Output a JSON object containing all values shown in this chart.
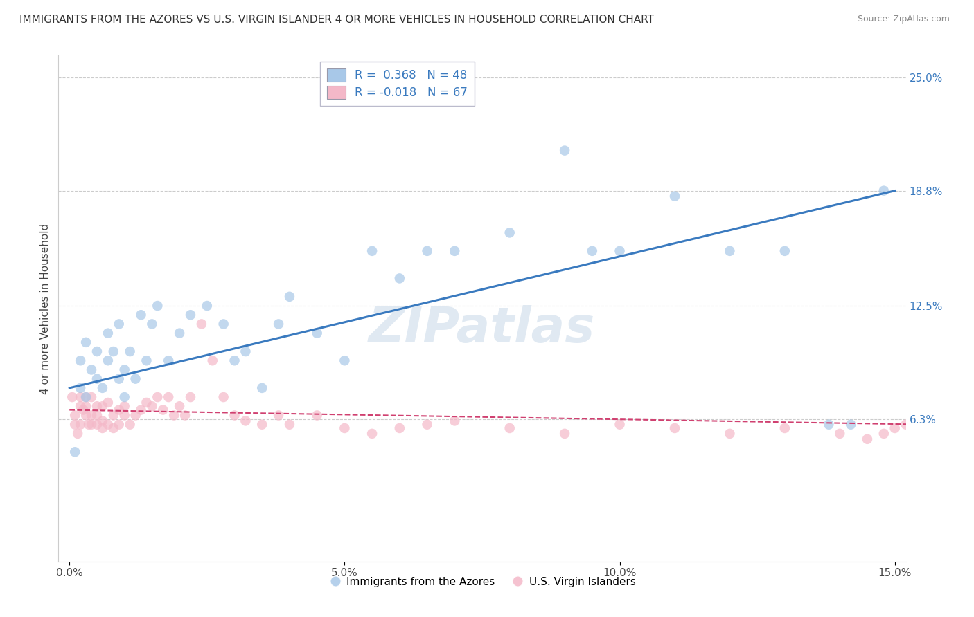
{
  "title": "IMMIGRANTS FROM THE AZORES VS U.S. VIRGIN ISLANDER 4 OR MORE VEHICLES IN HOUSEHOLD CORRELATION CHART",
  "source": "Source: ZipAtlas.com",
  "ylabel": "4 or more Vehicles in Household",
  "legend_label_blue": "Immigrants from the Azores",
  "legend_label_pink": "U.S. Virgin Islanders",
  "R_blue": 0.368,
  "N_blue": 48,
  "R_pink": -0.018,
  "N_pink": 67,
  "xlim": [
    -0.002,
    0.152
  ],
  "ylim": [
    -0.015,
    0.262
  ],
  "x_ticks": [
    0.0,
    0.05,
    0.1,
    0.15
  ],
  "x_tick_labels": [
    "0.0%",
    "5.0%",
    "10.0%",
    "15.0%"
  ],
  "y_tick_labels_right": [
    "6.3%",
    "12.5%",
    "18.8%",
    "25.0%"
  ],
  "y_ticks_right": [
    0.063,
    0.125,
    0.188,
    0.25
  ],
  "watermark": "ZIPatlas",
  "blue_color": "#a8c8e8",
  "pink_color": "#f4b8c8",
  "blue_line_color": "#3a7abf",
  "pink_line_color": "#d04070",
  "blue_line_y0": 0.08,
  "blue_line_y1": 0.188,
  "pink_line_y0": 0.068,
  "pink_line_y1": 0.06,
  "blue_scatter": {
    "x": [
      0.001,
      0.002,
      0.002,
      0.003,
      0.003,
      0.004,
      0.005,
      0.005,
      0.006,
      0.007,
      0.007,
      0.008,
      0.009,
      0.009,
      0.01,
      0.01,
      0.011,
      0.012,
      0.013,
      0.014,
      0.015,
      0.016,
      0.018,
      0.02,
      0.022,
      0.025,
      0.028,
      0.03,
      0.032,
      0.035,
      0.038,
      0.04,
      0.045,
      0.05,
      0.055,
      0.06,
      0.065,
      0.07,
      0.08,
      0.09,
      0.095,
      0.1,
      0.11,
      0.12,
      0.13,
      0.138,
      0.142,
      0.148
    ],
    "y": [
      0.045,
      0.095,
      0.08,
      0.075,
      0.105,
      0.09,
      0.085,
      0.1,
      0.08,
      0.095,
      0.11,
      0.1,
      0.085,
      0.115,
      0.09,
      0.075,
      0.1,
      0.085,
      0.12,
      0.095,
      0.115,
      0.125,
      0.095,
      0.11,
      0.12,
      0.125,
      0.115,
      0.095,
      0.1,
      0.08,
      0.115,
      0.13,
      0.11,
      0.095,
      0.155,
      0.14,
      0.155,
      0.155,
      0.165,
      0.21,
      0.155,
      0.155,
      0.185,
      0.155,
      0.155,
      0.06,
      0.06,
      0.188
    ]
  },
  "pink_scatter": {
    "x": [
      0.0005,
      0.001,
      0.001,
      0.0015,
      0.002,
      0.002,
      0.002,
      0.0025,
      0.003,
      0.003,
      0.003,
      0.0035,
      0.004,
      0.004,
      0.004,
      0.005,
      0.005,
      0.005,
      0.006,
      0.006,
      0.006,
      0.007,
      0.007,
      0.008,
      0.008,
      0.009,
      0.009,
      0.01,
      0.01,
      0.011,
      0.012,
      0.013,
      0.014,
      0.015,
      0.016,
      0.017,
      0.018,
      0.019,
      0.02,
      0.021,
      0.022,
      0.024,
      0.026,
      0.028,
      0.03,
      0.032,
      0.035,
      0.038,
      0.04,
      0.045,
      0.05,
      0.055,
      0.06,
      0.065,
      0.07,
      0.08,
      0.09,
      0.1,
      0.11,
      0.12,
      0.13,
      0.14,
      0.145,
      0.148,
      0.15,
      0.152,
      0.155
    ],
    "y": [
      0.075,
      0.06,
      0.065,
      0.055,
      0.06,
      0.07,
      0.075,
      0.068,
      0.065,
      0.07,
      0.075,
      0.06,
      0.06,
      0.065,
      0.075,
      0.06,
      0.065,
      0.07,
      0.058,
      0.062,
      0.07,
      0.06,
      0.072,
      0.058,
      0.065,
      0.06,
      0.068,
      0.065,
      0.07,
      0.06,
      0.065,
      0.068,
      0.072,
      0.07,
      0.075,
      0.068,
      0.075,
      0.065,
      0.07,
      0.065,
      0.075,
      0.115,
      0.095,
      0.075,
      0.065,
      0.062,
      0.06,
      0.065,
      0.06,
      0.065,
      0.058,
      0.055,
      0.058,
      0.06,
      0.062,
      0.058,
      0.055,
      0.06,
      0.058,
      0.055,
      0.058,
      0.055,
      0.052,
      0.055,
      0.058,
      0.06,
      0.055
    ]
  }
}
